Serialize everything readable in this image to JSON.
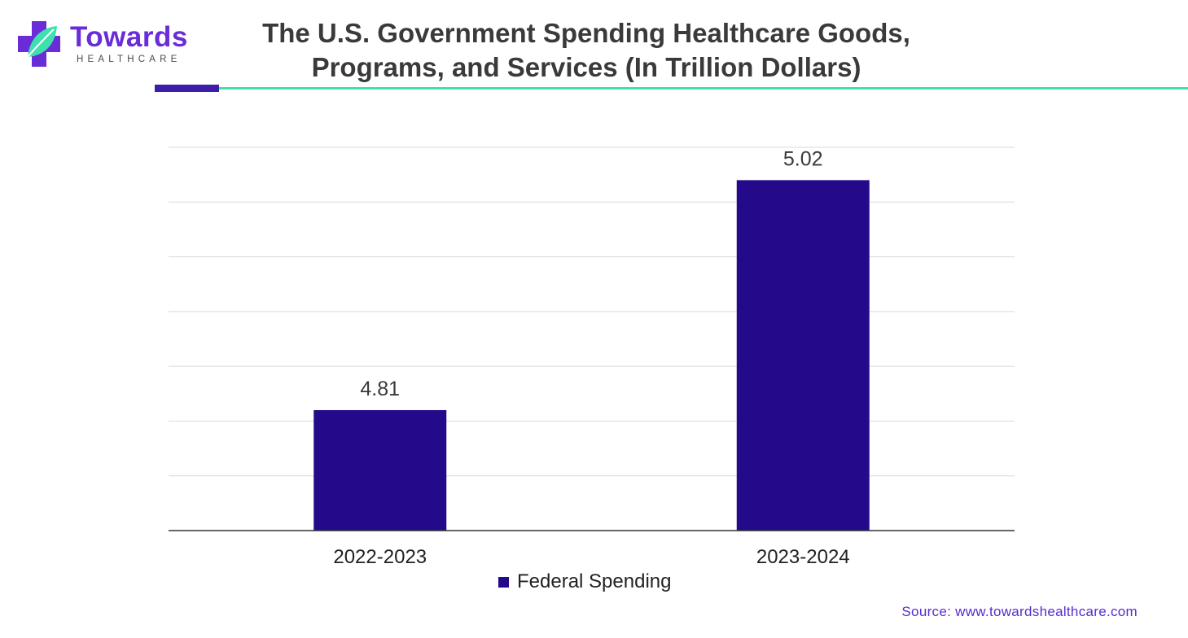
{
  "logo": {
    "name": "Towards",
    "subtitle": "HEALTHCARE",
    "colors": {
      "purple": "#6a2bd9",
      "teal": "#3fe0b0"
    }
  },
  "title": "The U.S. Government Spending Healthcare Goods, Programs, and Services (In Trillion Dollars)",
  "source": "Source: www.towardshealthcare.com",
  "chart_data": {
    "type": "bar",
    "categories": [
      "2022-2023",
      "2023-2024"
    ],
    "series": [
      {
        "name": "Federal Spending",
        "values": [
          4.81,
          5.02
        ],
        "color": "#240a8a"
      }
    ],
    "data_labels": [
      "4.81",
      "5.02"
    ],
    "ylim": [
      4.7,
      5.05
    ],
    "grid": true,
    "legend": "bottom-center",
    "xlabel": "",
    "ylabel": ""
  }
}
